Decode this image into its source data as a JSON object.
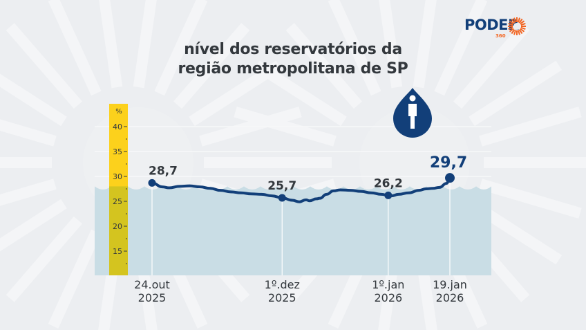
{
  "title": {
    "line1": "nível dos reservatórios da",
    "line2": "região metropolitana de SP"
  },
  "logo": {
    "name": "PODER",
    "sub": "360",
    "brand_color": "#123f79",
    "accent_color": "#f26522"
  },
  "icon": "water-drop-person-icon",
  "colors": {
    "line": "#123f79",
    "water": "#c9dde5",
    "ruler": "#fcd11c",
    "ruler_under_water": "#d4c41f",
    "background": "#eceef1"
  },
  "chart_data": {
    "type": "line",
    "title": "nível dos reservatórios da região metropolitana de SP",
    "xlabel": "",
    "ylabel": "%",
    "ylim": [
      10,
      42
    ],
    "yticks": [
      15,
      20,
      25,
      30,
      35,
      40
    ],
    "ytick_labels": [
      "15",
      "20",
      "25",
      "30",
      "35",
      "40"
    ],
    "grid": true,
    "water_surface_level": 28,
    "x_domain_days": [
      0,
      87
    ],
    "x_ticks": [
      {
        "day": 0,
        "label1": "24.out",
        "label2": "2025"
      },
      {
        "day": 38,
        "label1": "1º.dez",
        "label2": "2025"
      },
      {
        "day": 69,
        "label1": "1º.jan",
        "label2": "2026"
      },
      {
        "day": 87,
        "label1": "19.jan",
        "label2": "2026"
      }
    ],
    "series": [
      {
        "name": "nível dos reservatórios (%)",
        "x_days": [
          0,
          3,
          5,
          8,
          11,
          14,
          17,
          20,
          23,
          26,
          29,
          32,
          35,
          38,
          41,
          43,
          45,
          46,
          48,
          49,
          51,
          53,
          55,
          58,
          61,
          64,
          67,
          69,
          70,
          72,
          75,
          78,
          80,
          82,
          84,
          86,
          87
        ],
        "values": [
          28.7,
          27.9,
          27.7,
          28.0,
          28.1,
          27.9,
          27.6,
          27.2,
          26.9,
          26.7,
          26.5,
          26.4,
          26.1,
          25.7,
          25.2,
          24.9,
          25.3,
          25.1,
          25.5,
          25.6,
          26.4,
          27.1,
          27.3,
          27.2,
          27.0,
          26.7,
          26.4,
          26.2,
          26.1,
          26.4,
          26.7,
          27.2,
          27.5,
          27.6,
          27.8,
          28.6,
          29.7
        ],
        "labeled_points": [
          {
            "day": 0,
            "value": 28.7,
            "label": "28,7"
          },
          {
            "day": 38,
            "value": 25.7,
            "label": "25,7"
          },
          {
            "day": 69,
            "value": 26.2,
            "label": "26,2"
          },
          {
            "day": 87,
            "value": 29.7,
            "label": "29,7"
          }
        ]
      }
    ]
  }
}
